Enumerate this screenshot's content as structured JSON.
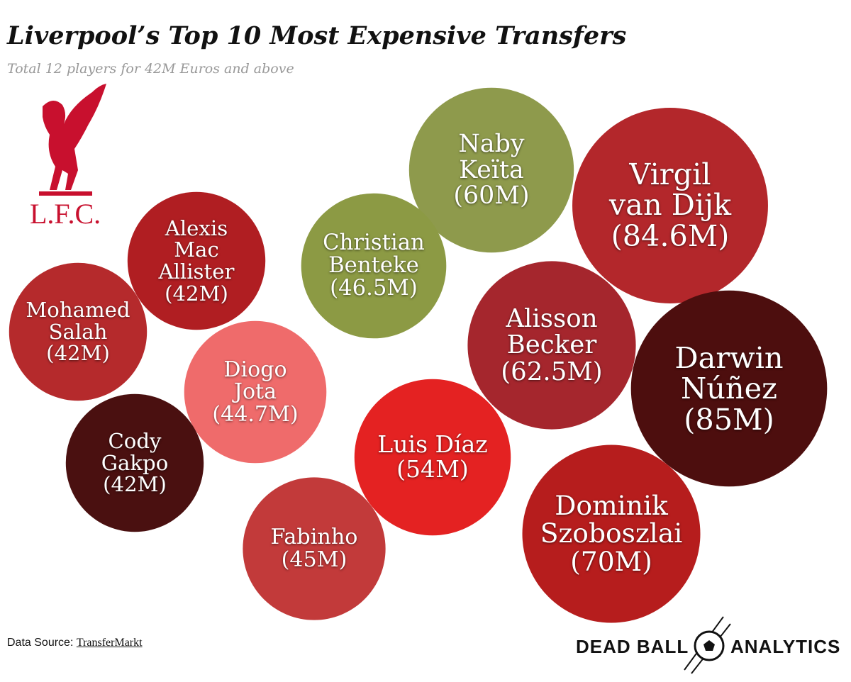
{
  "chart_data": {
    "type": "bubble",
    "title": "Liverpool’s Top 10 Most Expensive Transfers",
    "subtitle": "Total 12 players for 42M Euros and above",
    "logo_text": "L.F.C.",
    "categories": [
      "Naby Keïta",
      "Virgil van Dijk",
      "Alexis Mac Allister",
      "Christian Benteke",
      "Mohamed Salah",
      "Alisson Becker",
      "Darwin Núñez",
      "Diogo Jota",
      "Cody Gakpo",
      "Luis Díaz",
      "Fabinho",
      "Dominik Szoboszlai"
    ],
    "values": [
      60,
      84.6,
      42,
      46.5,
      42,
      62.5,
      85,
      44.7,
      42,
      54,
      45,
      70
    ],
    "value_labels": [
      "(60M)",
      "(84.6M)",
      "(42M)",
      "(46.5M)",
      "(42M)",
      "(62.5M)",
      "(85M)",
      "(44.7M)",
      "(42M)",
      "(54M)",
      "(45M)",
      "(70M)"
    ],
    "colors": [
      "#8e9a4c",
      "#b3272b",
      "#b01e22",
      "#8c9a44",
      "#b52a2c",
      "#a5262d",
      "#4d0e0e",
      "#ef6b6b",
      "#4a1010",
      "#e42222",
      "#c23a3a",
      "#b61d1d"
    ],
    "source_label": "Data Source:",
    "source": "TransferMarkt",
    "brand_left": "DEAD BALL",
    "brand_right": "ANALYTICS"
  }
}
